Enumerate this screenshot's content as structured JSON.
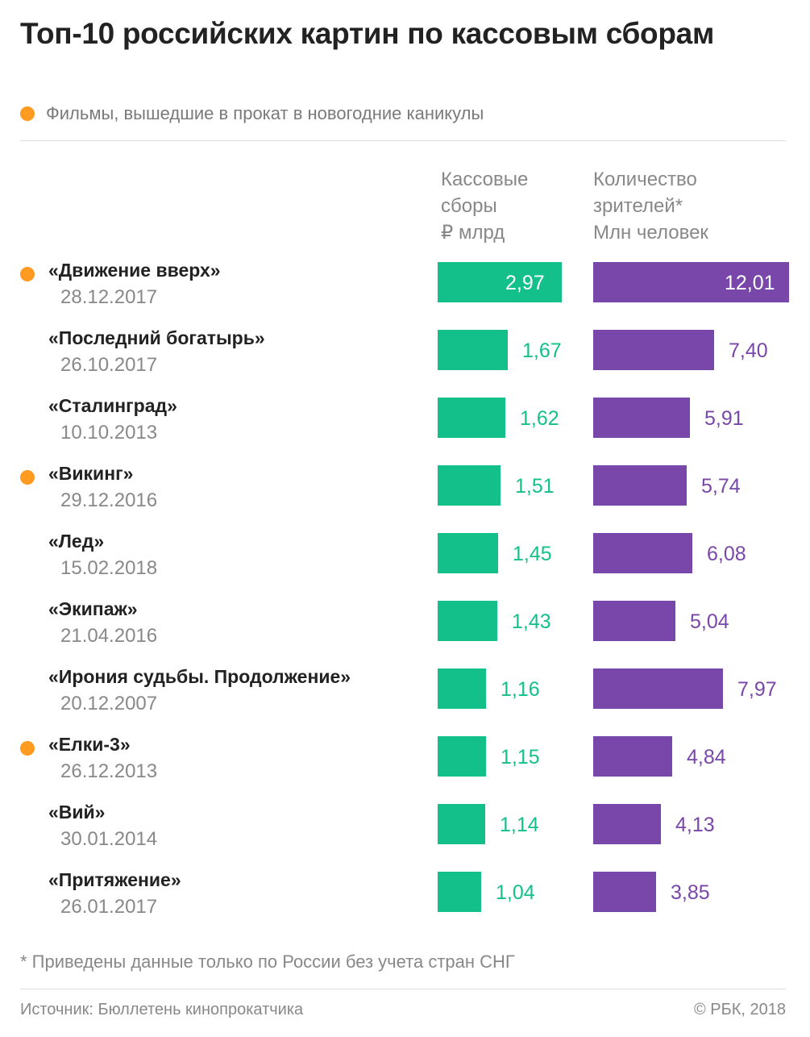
{
  "title": "Топ-10 российских картин по кассовым сборам",
  "legend": {
    "label": "Фильмы, вышедшие в прокат в новогодние каникулы",
    "color": "#ff9b21"
  },
  "colors": {
    "box_office": "#13c08a",
    "viewers": "#7946a9"
  },
  "columns": {
    "box_office": [
      "Кассовые",
      "сборы",
      "₽ млрд"
    ],
    "viewers": [
      "Количество",
      "зрителей*",
      "Млн человек"
    ]
  },
  "chart_data": {
    "type": "bar",
    "orientation": "horizontal",
    "categories": [
      "«Движение вверх»",
      "«Последний богатырь»",
      "«Сталинград»",
      "«Викинг»",
      "«Лед»",
      "«Экипаж»",
      "«Ирония судьбы. Продолжение»",
      "«Елки-3»",
      "«Вий»",
      "«Притяжение»"
    ],
    "dates": [
      "28.12.2017",
      "26.10.2017",
      "10.10.2013",
      "29.12.2016",
      "15.02.2018",
      "21.04.2016",
      "20.12.2007",
      "26.12.2013",
      "30.01.2014",
      "26.01.2017"
    ],
    "new_year_release": [
      true,
      false,
      false,
      true,
      false,
      false,
      false,
      true,
      false,
      false
    ],
    "series": [
      {
        "name": "Кассовые сборы, ₽ млрд",
        "values": [
          2.97,
          1.67,
          1.62,
          1.51,
          1.45,
          1.43,
          1.16,
          1.15,
          1.14,
          1.04
        ],
        "labels": [
          "2,97",
          "1,67",
          "1,62",
          "1,51",
          "1,45",
          "1,43",
          "1,16",
          "1,15",
          "1,14",
          "1,04"
        ]
      },
      {
        "name": "Количество зрителей*, Млн человек",
        "values": [
          12.01,
          7.4,
          5.91,
          5.74,
          6.08,
          5.04,
          7.97,
          4.84,
          4.13,
          3.85
        ],
        "labels": [
          "12,01",
          "7,40",
          "5,91",
          "5,74",
          "6,08",
          "5,04",
          "7,97",
          "4,84",
          "4,13",
          "3,85"
        ]
      }
    ]
  },
  "footnote": "* Приведены данные только по России без учета стран СНГ",
  "source": "Источник: Бюллетень кинопрокатчика",
  "copyright": "© РБК, 2018"
}
